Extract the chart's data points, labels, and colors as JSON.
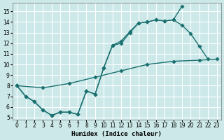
{
  "bg_color": "#cce8e8",
  "grid_color": "#ffffff",
  "line_color": "#1a7070",
  "xlabel": "Humidex (Indice chaleur)",
  "xlim": [
    -0.5,
    23.5
  ],
  "ylim": [
    4.8,
    15.8
  ],
  "xticks": [
    0,
    1,
    2,
    3,
    4,
    5,
    6,
    7,
    8,
    9,
    10,
    11,
    12,
    13,
    14,
    15,
    16,
    17,
    18,
    19,
    20,
    21,
    22,
    23
  ],
  "yticks": [
    5,
    6,
    7,
    8,
    9,
    10,
    11,
    12,
    13,
    14,
    15
  ],
  "line1_x": [
    0,
    1,
    2,
    3,
    4,
    5,
    6,
    7,
    8,
    9,
    10,
    11,
    12,
    13,
    14,
    15,
    16,
    17,
    18,
    19
  ],
  "line1_y": [
    8.0,
    7.0,
    6.5,
    5.7,
    5.2,
    5.5,
    5.5,
    5.3,
    7.5,
    7.2,
    9.7,
    11.8,
    12.2,
    13.1,
    13.9,
    14.0,
    14.2,
    14.1,
    14.2,
    15.5
  ],
  "line2_x": [
    0,
    1,
    2,
    3,
    4,
    5,
    6,
    7,
    8,
    9,
    10,
    11,
    12,
    13,
    14,
    15,
    16,
    17,
    18,
    19,
    20,
    21,
    22
  ],
  "line2_y": [
    8.0,
    7.0,
    6.5,
    5.7,
    5.2,
    5.5,
    5.5,
    5.3,
    7.5,
    7.2,
    9.7,
    11.8,
    12.0,
    13.0,
    13.9,
    14.0,
    14.2,
    14.1,
    14.2,
    13.7,
    12.9,
    11.7,
    10.5
  ],
  "line3_x": [
    0,
    3,
    6,
    9,
    12,
    15,
    18,
    21,
    23
  ],
  "line3_y": [
    8.0,
    7.8,
    8.2,
    8.8,
    9.4,
    10.0,
    10.3,
    10.4,
    10.5
  ]
}
